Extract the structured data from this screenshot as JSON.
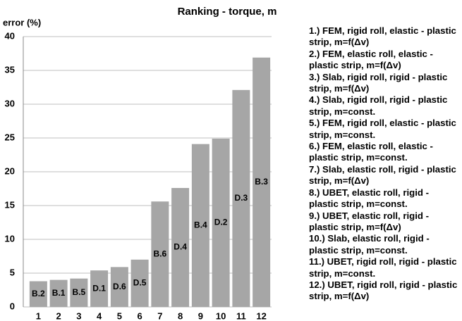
{
  "chart_data": {
    "type": "bar",
    "title": "Ranking - torque, m",
    "ylabel": "error (%)",
    "categories": [
      "1",
      "2",
      "3",
      "4",
      "5",
      "6",
      "7",
      "8",
      "9",
      "10",
      "11",
      "12"
    ],
    "values": [
      3.8,
      4.0,
      4.2,
      5.4,
      5.9,
      7.0,
      15.6,
      17.6,
      24.1,
      24.9,
      32.1,
      36.9
    ],
    "annotations": [
      "B.2",
      "B.1",
      "B.5",
      "D.1",
      "D.6",
      "D.5",
      "B.6",
      "D.4",
      "B.4",
      "D.2",
      "D.3",
      "B.3"
    ],
    "color": "#a6a6a6",
    "ylim": [
      0,
      40
    ],
    "yticks": [
      0,
      5,
      10,
      15,
      20,
      25,
      30,
      35,
      40
    ],
    "grid": true,
    "notes": [
      "1.) FEM, rigid roll, elastic - plastic strip, m=f(Δv)",
      "2.) FEM, elastic roll, elastic - plastic strip, m=f(Δv)",
      "3.) Slab, rigid roll, rigid - plastic strip, m=f(Δv)",
      "4.) Slab, rigid roll, rigid - plastic strip, m=const.",
      "5.) FEM, rigid roll, elastic - plastic strip, m=const.",
      "6.) FEM, elastic roll, elastic - plastic strip, m=const.",
      "7.) Slab, elastic roll, rigid - plastic strip, m=f(Δv)",
      "8.) UBET, elastic roll, rigid - plastic strip, m=const.",
      "9.) UBET, elastic roll, rigid - plastic strip, m=f(Δv)",
      "10.) Slab, elastic roll, rigid - plastic strip, m=const.",
      "11.) UBET, rigid roll, rigid - plastic strip, m=const.",
      "12.) UBET, rigid roll, rigid - plastic strip, m=f(Δv)"
    ]
  }
}
